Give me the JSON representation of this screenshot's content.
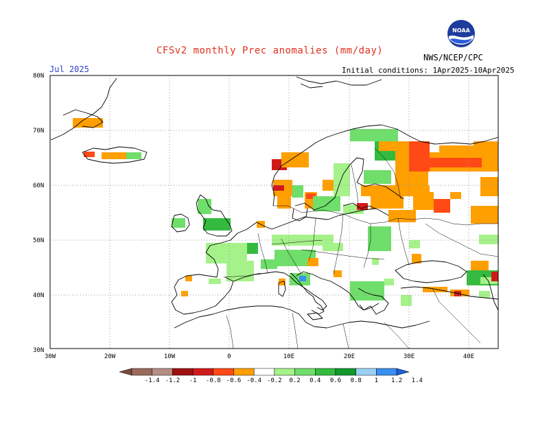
{
  "title": "CFSv2 monthly Prec anomalies (mm/day)",
  "month": "Jul 2025",
  "initial_conditions": "Initial conditions: 1Apr2025-10Apr2025",
  "agency": "NWS/NCEP/CPC",
  "logo_text": "NOAA",
  "map": {
    "lat_labels": [
      "80N",
      "70N",
      "60N",
      "50N",
      "40N",
      "30N"
    ],
    "lon_labels": [
      "30W",
      "20W",
      "10W",
      "0",
      "10E",
      "20E",
      "30E",
      "40E"
    ]
  },
  "colorbar": {
    "labels": [
      "-1.4",
      "-1.2",
      "-1",
      "-0.8",
      "-0.6",
      "-0.4",
      "-0.2",
      "0.2",
      "0.4",
      "0.6",
      "0.8",
      "1",
      "1.2",
      "1.4"
    ],
    "colors": [
      "#7a4a3a",
      "#9b6b5b",
      "#b48e83",
      "#a01010",
      "#d01a1a",
      "#ff4a16",
      "#ff9f00",
      "#ffffff",
      "#a6f28a",
      "#6fde6a",
      "#34bb3f",
      "#12992c",
      "#9bd0f5",
      "#3a8ff0",
      "#1c60d8"
    ],
    "anomaly_colors": {
      "orange": "#ff9f00",
      "red_orange": "#ff4a16",
      "red": "#d01a1a",
      "light_green": "#a6f28a",
      "green": "#6fde6a",
      "mid_green": "#34bb3f",
      "blue": "#3a8ff0"
    }
  }
}
